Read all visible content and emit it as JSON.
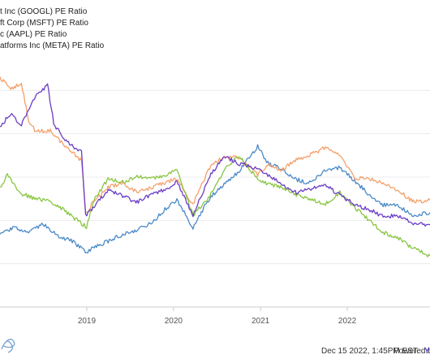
{
  "chart_data": {
    "type": "line",
    "legend_placement": "top-left",
    "grid": "horizontal",
    "x_ticks": [
      "2019",
      "2020",
      "2021",
      "2022"
    ],
    "x_range": [
      "2018-01-01",
      "2022-12-15"
    ],
    "y_range": [
      10,
      40
    ],
    "series": [
      {
        "name": "t Inc (GOOGL) PE Ratio",
        "color": "#4a89c8",
        "values": [
          [
            "2018-01-01",
            18.3
          ],
          [
            "2018-03-01",
            19.2
          ],
          [
            "2018-05-01",
            18.5
          ],
          [
            "2018-07-01",
            19.6
          ],
          [
            "2018-09-01",
            18.2
          ],
          [
            "2018-11-01",
            17.6
          ],
          [
            "2018-12-31",
            16.3
          ],
          [
            "2019-02-01",
            16.9
          ],
          [
            "2019-04-01",
            17.6
          ],
          [
            "2019-06-01",
            18.4
          ],
          [
            "2019-08-01",
            18.9
          ],
          [
            "2019-10-01",
            19.7
          ],
          [
            "2019-12-01",
            21.4
          ],
          [
            "2020-01-15",
            22.3
          ],
          [
            "2020-03-23",
            19.2
          ],
          [
            "2020-06-01",
            22.6
          ],
          [
            "2020-08-01",
            24.2
          ],
          [
            "2020-10-01",
            25.6
          ],
          [
            "2020-12-20",
            28.6
          ],
          [
            "2021-02-01",
            26.6
          ],
          [
            "2021-04-01",
            25.9
          ],
          [
            "2021-06-01",
            24.7
          ],
          [
            "2021-08-01",
            24.3
          ],
          [
            "2021-10-01",
            25.8
          ],
          [
            "2021-12-01",
            26.1
          ],
          [
            "2022-02-01",
            24.6
          ],
          [
            "2022-04-01",
            23.0
          ],
          [
            "2022-06-01",
            21.8
          ],
          [
            "2022-08-01",
            21.7
          ],
          [
            "2022-10-01",
            20.6
          ],
          [
            "2022-12-15",
            20.9
          ]
        ]
      },
      {
        "name": "ft Corp (MSFT) PE Ratio",
        "color": "#f4a06a",
        "values": [
          [
            "2018-01-01",
            36.5
          ],
          [
            "2018-02-15",
            35.2
          ],
          [
            "2018-04-01",
            35.8
          ],
          [
            "2018-05-01",
            31.6
          ],
          [
            "2018-06-01",
            30.2
          ],
          [
            "2018-08-01",
            30.4
          ],
          [
            "2018-10-01",
            28.6
          ],
          [
            "2018-12-10",
            26.9
          ],
          [
            "2018-12-27",
            20.8
          ],
          [
            "2019-02-01",
            22.3
          ],
          [
            "2019-04-01",
            23.8
          ],
          [
            "2019-06-01",
            24.3
          ],
          [
            "2019-08-01",
            23.2
          ],
          [
            "2019-10-01",
            23.8
          ],
          [
            "2019-12-01",
            24.4
          ],
          [
            "2020-01-15",
            24.8
          ],
          [
            "2020-03-23",
            21.8
          ],
          [
            "2020-06-01",
            26.1
          ],
          [
            "2020-08-01",
            27.4
          ],
          [
            "2020-10-01",
            27.2
          ],
          [
            "2020-12-20",
            25.3
          ],
          [
            "2021-02-01",
            26.4
          ],
          [
            "2021-04-01",
            25.8
          ],
          [
            "2021-06-01",
            27.0
          ],
          [
            "2021-08-01",
            27.6
          ],
          [
            "2021-10-01",
            28.4
          ],
          [
            "2021-12-01",
            27.6
          ],
          [
            "2022-02-01",
            24.8
          ],
          [
            "2022-04-01",
            24.9
          ],
          [
            "2022-06-01",
            24.2
          ],
          [
            "2022-08-01",
            23.6
          ],
          [
            "2022-10-01",
            22.2
          ],
          [
            "2022-12-15",
            22.3
          ]
        ]
      },
      {
        "name": "c (AAPL) PE Ratio",
        "color": "#88c541",
        "values": [
          [
            "2018-01-01",
            23.8
          ],
          [
            "2018-02-01",
            25.2
          ],
          [
            "2018-04-01",
            23.1
          ],
          [
            "2018-06-01",
            22.5
          ],
          [
            "2018-08-01",
            22.2
          ],
          [
            "2018-10-01",
            21.1
          ],
          [
            "2018-12-31",
            19.2
          ],
          [
            "2019-02-01",
            22.4
          ],
          [
            "2019-04-01",
            24.8
          ],
          [
            "2019-06-01",
            24.4
          ],
          [
            "2019-08-01",
            25.1
          ],
          [
            "2019-10-01",
            24.8
          ],
          [
            "2019-12-01",
            25.3
          ],
          [
            "2020-01-15",
            25.9
          ],
          [
            "2020-03-23",
            20.6
          ],
          [
            "2020-06-01",
            22.8
          ],
          [
            "2020-08-01",
            25.8
          ],
          [
            "2020-10-01",
            27.5
          ],
          [
            "2020-12-20",
            24.8
          ],
          [
            "2021-02-01",
            24.2
          ],
          [
            "2021-04-01",
            23.8
          ],
          [
            "2021-06-01",
            23.0
          ],
          [
            "2021-08-01",
            22.5
          ],
          [
            "2021-10-01",
            21.9
          ],
          [
            "2021-12-01",
            23.2
          ],
          [
            "2022-02-01",
            21.5
          ],
          [
            "2022-04-01",
            20.1
          ],
          [
            "2022-06-01",
            18.6
          ],
          [
            "2022-08-01",
            18.0
          ],
          [
            "2022-10-01",
            16.8
          ],
          [
            "2022-12-15",
            15.9
          ]
        ]
      },
      {
        "name": "atforms Inc (META) PE Ratio",
        "color": "#6a3dc6",
        "values": [
          [
            "2018-01-01",
            30.8
          ],
          [
            "2018-02-15",
            32.3
          ],
          [
            "2018-04-01",
            31.0
          ],
          [
            "2018-05-15",
            33.6
          ],
          [
            "2018-06-15",
            34.8
          ],
          [
            "2018-07-20",
            35.6
          ],
          [
            "2018-08-15",
            31.2
          ],
          [
            "2018-10-01",
            29.2
          ],
          [
            "2018-12-10",
            27.9
          ],
          [
            "2018-12-27",
            20.6
          ],
          [
            "2019-02-01",
            21.6
          ],
          [
            "2019-04-01",
            23.5
          ],
          [
            "2019-06-01",
            22.8
          ],
          [
            "2019-08-01",
            22.1
          ],
          [
            "2019-10-01",
            23.0
          ],
          [
            "2019-12-01",
            23.6
          ],
          [
            "2020-01-15",
            24.5
          ],
          [
            "2020-03-23",
            20.6
          ],
          [
            "2020-06-01",
            25.1
          ],
          [
            "2020-08-01",
            27.4
          ],
          [
            "2020-10-01",
            26.6
          ],
          [
            "2020-12-20",
            25.9
          ],
          [
            "2021-02-01",
            25.3
          ],
          [
            "2021-04-01",
            24.1
          ],
          [
            "2021-06-01",
            23.2
          ],
          [
            "2021-08-01",
            23.6
          ],
          [
            "2021-10-01",
            24.1
          ],
          [
            "2021-12-01",
            22.9
          ],
          [
            "2022-02-01",
            21.8
          ],
          [
            "2022-04-01",
            21.3
          ],
          [
            "2022-06-01",
            20.4
          ],
          [
            "2022-08-01",
            20.6
          ],
          [
            "2022-10-01",
            19.6
          ],
          [
            "2022-12-15",
            19.5
          ]
        ]
      }
    ]
  },
  "footer": {
    "timestamp": "Dec 15 2022, 1:45PM EST.",
    "powered_by": "Powered by",
    "brand": "Y"
  },
  "colors": {
    "brand": "#5b3fd1",
    "grid": "#e6e6e6",
    "axis": "#cccccc"
  },
  "icons": {
    "watermark": "ycharts-logo"
  }
}
